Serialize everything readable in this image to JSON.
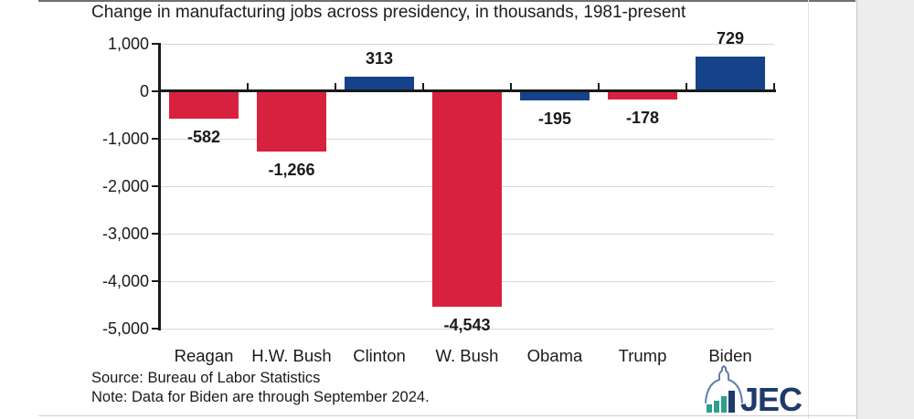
{
  "page": {
    "title": "Change in manufacturing jobs across presidency, in thousands, 1981-present",
    "source": "Source: Bureau of Labor Statistics",
    "note": "Note: Data for Biden are through September 2024."
  },
  "chart_data": {
    "type": "bar",
    "title": "Change in manufacturing jobs across presidency, in thousands, 1981-present",
    "categories": [
      "Reagan",
      "H.W. Bush",
      "Clinton",
      "W. Bush",
      "Obama",
      "Trump",
      "Biden"
    ],
    "values": [
      -582,
      -1266,
      313,
      -4543,
      -195,
      -178,
      729
    ],
    "value_labels": [
      "-582",
      "-1,266",
      "313",
      "-4,543",
      "-195",
      "-178",
      "729"
    ],
    "parties": [
      "R",
      "R",
      "D",
      "R",
      "D",
      "R",
      "D"
    ],
    "party_colors": {
      "R": "#d8213f",
      "D": "#16428a"
    },
    "yticks": [
      {
        "label": "1,000",
        "value": 1000
      },
      {
        "label": "0",
        "value": 0
      },
      {
        "label": "-1,000",
        "value": -1000
      },
      {
        "label": "-2,000",
        "value": -2000
      },
      {
        "label": "-3,000",
        "value": -3000
      },
      {
        "label": "-4,000",
        "value": -4000
      },
      {
        "label": "-5,000",
        "value": -5000
      }
    ],
    "ylim": [
      -5000,
      1000
    ],
    "xlabel": "",
    "ylabel": "",
    "grid": true,
    "legend": "none"
  },
  "logo": {
    "text": "JEC",
    "navy": "#1e3a6e",
    "teal": "#2f9e8a",
    "dome": "#5e7fae"
  }
}
